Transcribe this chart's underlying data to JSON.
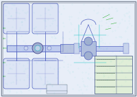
{
  "bg_color": "#e8eef8",
  "border_color": "#b0b8c8",
  "outer_border": "#a0a8b8",
  "line_color_blue": "#5060c0",
  "line_color_cyan": "#00c0c0",
  "line_color_green": "#00a000",
  "line_color_dark": "#303080",
  "title": "",
  "fig_width": 2.0,
  "fig_height": 1.41,
  "dpi": 100
}
